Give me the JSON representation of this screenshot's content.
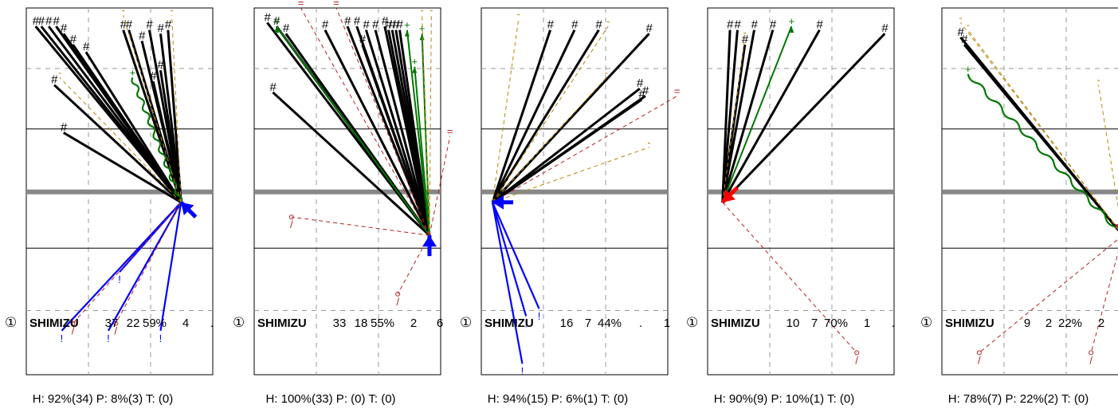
{
  "colors": {
    "hit": "#000000",
    "home_arrow": "#0000ff",
    "away_arrow": "#ff0000",
    "green": "#007700",
    "orange": "#b8860b",
    "red_dashed": "#b22222",
    "separator": "#888888",
    "grid": "#999999"
  },
  "chart_data": [
    {
      "type": "scatter",
      "panel": 1,
      "player_badge": "①",
      "player": "SHIMIZU",
      "stats": [
        "37",
        "22",
        "59%",
        "4",
        "."
      ],
      "summary": "H: 92%(34)  P: 8%(3)  T: (0)",
      "arrow": {
        "color": "home",
        "dir": "up-left"
      },
      "origin": [
        0.83,
        0.53
      ],
      "rays": [
        {
          "to": [
            0.05,
            0.05
          ],
          "kind": "hit",
          "label": "#"
        },
        {
          "to": [
            0.08,
            0.05
          ],
          "kind": "hit",
          "label": "#"
        },
        {
          "to": [
            0.12,
            0.05
          ],
          "kind": "hit",
          "label": "#"
        },
        {
          "to": [
            0.16,
            0.05
          ],
          "kind": "hit",
          "label": "#"
        },
        {
          "to": [
            0.2,
            0.07
          ],
          "kind": "hit",
          "label": "#"
        },
        {
          "to": [
            0.25,
            0.1
          ],
          "kind": "hit",
          "label": "#"
        },
        {
          "to": [
            0.32,
            0.12
          ],
          "kind": "hit",
          "label": "#"
        },
        {
          "to": [
            0.52,
            0.06
          ],
          "kind": "hit",
          "label": "#"
        },
        {
          "to": [
            0.55,
            0.06
          ],
          "kind": "hit",
          "label": "#"
        },
        {
          "to": [
            0.62,
            0.09
          ],
          "kind": "hit",
          "label": "#"
        },
        {
          "to": [
            0.66,
            0.06
          ],
          "kind": "hit",
          "label": "#"
        },
        {
          "to": [
            0.72,
            0.07
          ],
          "kind": "hit",
          "label": "#"
        },
        {
          "to": [
            0.76,
            0.06
          ],
          "kind": "hit",
          "label": "#"
        },
        {
          "to": [
            0.72,
            0.17
          ],
          "kind": "hit",
          "label": "#"
        },
        {
          "to": [
            0.68,
            0.2
          ],
          "kind": "hit",
          "label": "#"
        },
        {
          "to": [
            0.15,
            0.21
          ],
          "kind": "hit",
          "label": "#"
        },
        {
          "to": [
            0.2,
            0.34
          ],
          "kind": "hit",
          "label": "#"
        },
        {
          "to": [
            0.57,
            0.19
          ],
          "kind": "green_wave",
          "label": "+"
        },
        {
          "to": [
            0.78,
            0.02
          ],
          "kind": "orange_dash",
          "label": "-"
        },
        {
          "to": [
            0.52,
            0.02
          ],
          "kind": "orange_dash",
          "label": "-"
        },
        {
          "to": [
            0.18,
            0.19
          ],
          "kind": "orange_dash",
          "label": "-"
        },
        {
          "to": [
            0.19,
            0.88
          ],
          "kind": "blue",
          "label": "!"
        },
        {
          "to": [
            0.44,
            0.88
          ],
          "kind": "blue",
          "label": "!"
        },
        {
          "to": [
            0.72,
            0.88
          ],
          "kind": "blue",
          "label": "!"
        },
        {
          "to": [
            0.5,
            0.72
          ],
          "kind": "blue",
          "label": "!"
        },
        {
          "to": [
            0.25,
            0.86
          ],
          "kind": "red_dash",
          "label": "/"
        },
        {
          "to": [
            0.48,
            0.86
          ],
          "kind": "red_dash",
          "label": "/"
        }
      ]
    },
    {
      "type": "scatter",
      "panel": 2,
      "player_badge": "①",
      "player": "SHIMIZU",
      "stats": [
        "33",
        "18",
        "55%",
        "2",
        "6"
      ],
      "summary": "H: 100%(33)  P: (0)  T: (0)",
      "arrow": {
        "color": "home",
        "dir": "up"
      },
      "origin": [
        0.94,
        0.62
      ],
      "rays": [
        {
          "to": [
            0.07,
            0.04
          ],
          "kind": "hit",
          "label": "#"
        },
        {
          "to": [
            0.12,
            0.05
          ],
          "kind": "hit",
          "label": "#"
        },
        {
          "to": [
            0.17,
            0.07
          ],
          "kind": "hit",
          "label": "#"
        },
        {
          "to": [
            0.38,
            0.06
          ],
          "kind": "hit",
          "label": "#"
        },
        {
          "to": [
            0.5,
            0.05
          ],
          "kind": "hit",
          "label": "#"
        },
        {
          "to": [
            0.55,
            0.05
          ],
          "kind": "hit",
          "label": "#"
        },
        {
          "to": [
            0.6,
            0.06
          ],
          "kind": "hit",
          "label": "#"
        },
        {
          "to": [
            0.65,
            0.06
          ],
          "kind": "hit",
          "label": "#"
        },
        {
          "to": [
            0.7,
            0.05
          ],
          "kind": "hit",
          "label": "#"
        },
        {
          "to": [
            0.72,
            0.06
          ],
          "kind": "hit",
          "label": "#"
        },
        {
          "to": [
            0.74,
            0.06
          ],
          "kind": "hit",
          "label": "#"
        },
        {
          "to": [
            0.76,
            0.06
          ],
          "kind": "hit",
          "label": "#"
        },
        {
          "to": [
            0.78,
            0.06
          ],
          "kind": "hit",
          "label": "#"
        },
        {
          "to": [
            0.58,
            0.1
          ],
          "kind": "hit",
          "label": "#"
        },
        {
          "to": [
            0.1,
            0.23
          ],
          "kind": "hit",
          "label": "#"
        },
        {
          "to": [
            0.12,
            0.05
          ],
          "kind": "green_solid",
          "label": "+"
        },
        {
          "to": [
            0.82,
            0.06
          ],
          "kind": "green_solid",
          "label": "+"
        },
        {
          "to": [
            0.9,
            0.07
          ],
          "kind": "green_solid",
          "label": "+"
        },
        {
          "to": [
            0.86,
            0.16
          ],
          "kind": "green_solid",
          "label": "+"
        },
        {
          "to": [
            0.9,
            0.02
          ],
          "kind": "orange_dash",
          "label": "-"
        },
        {
          "to": [
            0.95,
            0.02
          ],
          "kind": "orange_dash",
          "label": "-"
        },
        {
          "to": [
            0.25,
            0.0
          ],
          "kind": "red_dash",
          "label": "="
        },
        {
          "to": [
            0.44,
            0.0
          ],
          "kind": "red_dash",
          "label": "="
        },
        {
          "to": [
            1.05,
            0.35
          ],
          "kind": "red_dash",
          "label": "="
        },
        {
          "to": [
            0.2,
            0.57
          ],
          "kind": "red_dash",
          "label": "/"
        },
        {
          "to": [
            0.77,
            0.78
          ],
          "kind": "red_dash",
          "label": "/"
        }
      ]
    },
    {
      "type": "scatter",
      "panel": 3,
      "player_badge": "①",
      "player": "SHIMIZU",
      "stats": [
        "16",
        "7",
        "44%",
        ".",
        "1"
      ],
      "summary": "H: 94%(15)  P: 6%(1)  T: (0)",
      "arrow": {
        "color": "home",
        "dir": "left"
      },
      "origin": [
        0.06,
        0.53
      ],
      "rays": [
        {
          "to": [
            0.37,
            0.06
          ],
          "kind": "hit",
          "label": "#"
        },
        {
          "to": [
            0.5,
            0.06
          ],
          "kind": "hit",
          "label": "#"
        },
        {
          "to": [
            0.63,
            0.06
          ],
          "kind": "hit",
          "label": "#"
        },
        {
          "to": [
            0.9,
            0.07
          ],
          "kind": "hit",
          "label": "#"
        },
        {
          "to": [
            0.85,
            0.22
          ],
          "kind": "hit",
          "label": "#"
        },
        {
          "to": [
            0.88,
            0.24
          ],
          "kind": "hit",
          "label": "#"
        },
        {
          "to": [
            0.86,
            0.25
          ],
          "kind": "hit",
          "label": "#"
        },
        {
          "to": [
            0.2,
            0.03
          ],
          "kind": "orange_dash",
          "label": "-"
        },
        {
          "to": [
            0.68,
            0.05
          ],
          "kind": "orange_dash",
          "label": "-"
        },
        {
          "to": [
            0.67,
            0.19
          ],
          "kind": "orange_dash",
          "label": "-"
        },
        {
          "to": [
            0.9,
            0.38
          ],
          "kind": "orange_dash",
          "label": "-"
        },
        {
          "to": [
            1.05,
            0.24
          ],
          "kind": "red_dash",
          "label": "="
        },
        {
          "to": [
            0.24,
            0.84
          ],
          "kind": "blue",
          "label": "!"
        },
        {
          "to": [
            0.31,
            0.82
          ],
          "kind": "blue",
          "label": "!"
        },
        {
          "to": [
            0.22,
            0.97
          ],
          "kind": "blue",
          "label": "!"
        }
      ]
    },
    {
      "type": "scatter",
      "panel": 4,
      "player_badge": "①",
      "player": "SHIMIZU",
      "stats": [
        "10",
        "7",
        "70%",
        "1",
        "."
      ],
      "summary": "H: 90%(9)  P: 10%(1)  T: (0)",
      "arrow": {
        "color": "away",
        "dir": "down-left"
      },
      "origin": [
        0.08,
        0.53
      ],
      "rays": [
        {
          "to": [
            0.12,
            0.06
          ],
          "kind": "hit",
          "label": "#"
        },
        {
          "to": [
            0.16,
            0.06
          ],
          "kind": "hit",
          "label": "#"
        },
        {
          "to": [
            0.25,
            0.06
          ],
          "kind": "hit",
          "label": "#"
        },
        {
          "to": [
            0.35,
            0.06
          ],
          "kind": "hit",
          "label": "#"
        },
        {
          "to": [
            0.6,
            0.06
          ],
          "kind": "hit",
          "label": "#"
        },
        {
          "to": [
            0.95,
            0.07
          ],
          "kind": "hit",
          "label": "#"
        },
        {
          "to": [
            0.2,
            0.1
          ],
          "kind": "hit",
          "label": "#"
        },
        {
          "to": [
            0.45,
            0.05
          ],
          "kind": "green_solid",
          "label": "+"
        },
        {
          "to": [
            0.2,
            0.08
          ],
          "kind": "orange_dash",
          "label": "-"
        },
        {
          "to": [
            0.8,
            0.94
          ],
          "kind": "red_dash",
          "label": "/"
        }
      ]
    },
    {
      "type": "scatter",
      "panel": 5,
      "player_badge": "①",
      "player": "SHIMIZU",
      "stats": [
        "9",
        "2",
        "22%",
        "2"
      ],
      "summary": "H: 78%(7)  P: 22%(2)  T: (0)",
      "arrow": {
        "color": "away",
        "dir": "down"
      },
      "origin": [
        0.97,
        0.62
      ],
      "rays": [
        {
          "to": [
            0.1,
            0.08
          ],
          "kind": "hit",
          "label": "#"
        },
        {
          "to": [
            0.12,
            0.1
          ],
          "kind": "hit",
          "label": "#"
        },
        {
          "to": [
            0.14,
            0.18
          ],
          "kind": "green_wave",
          "label": "+"
        },
        {
          "to": [
            0.1,
            0.04
          ],
          "kind": "orange_dash",
          "label": "-"
        },
        {
          "to": [
            0.14,
            0.06
          ],
          "kind": "orange_dash",
          "label": "-"
        },
        {
          "to": [
            0.84,
            0.21
          ],
          "kind": "orange_dash",
          "label": "-"
        },
        {
          "to": [
            0.2,
            0.94
          ],
          "kind": "red_dash",
          "label": "/"
        },
        {
          "to": [
            0.8,
            0.94
          ],
          "kind": "red_dash",
          "label": "/"
        }
      ]
    }
  ]
}
